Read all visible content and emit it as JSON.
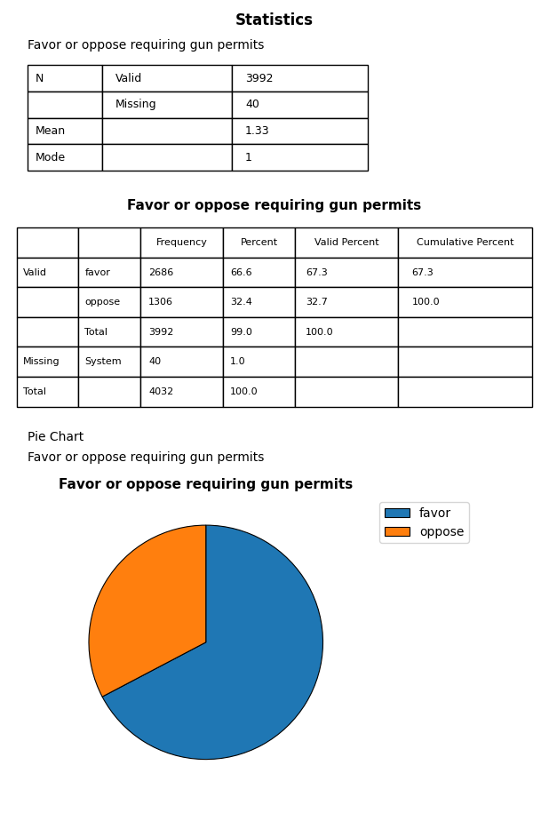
{
  "chart_data": [
    {
      "type": "table",
      "title": "Statistics",
      "subtitle": "Favor or oppose requiring gun permits",
      "rows": [
        [
          "N",
          "Valid",
          "3992"
        ],
        [
          null,
          "Missing",
          "40"
        ],
        [
          "Mean",
          null,
          "1.33"
        ],
        [
          "Mode",
          null,
          "1"
        ]
      ]
    },
    {
      "type": "table",
      "title": "Favor or oppose requiring gun permits",
      "columns": [
        null,
        null,
        "Frequency",
        "Percent",
        "Valid Percent",
        "Cumulative Percent"
      ],
      "rows": [
        [
          "Valid",
          "favor",
          "2686",
          "66.6",
          "67.3",
          "67.3"
        ],
        [
          null,
          "oppose",
          "1306",
          "32.4",
          "32.7",
          "100.0"
        ],
        [
          null,
          "Total",
          "3992",
          "99.0",
          "100.0",
          null
        ],
        [
          "Missing",
          "System",
          "40",
          "1.0",
          null,
          null
        ],
        [
          "Total",
          null,
          "4032",
          "100.0",
          null,
          null
        ]
      ]
    },
    {
      "type": "pie",
      "heading": "Pie Chart",
      "subtitle": "Favor or oppose requiring gun permits",
      "title": "Favor or oppose requiring gun permits",
      "categories": [
        "favor",
        "oppose"
      ],
      "values": [
        67.3,
        32.7
      ],
      "legend": "upper right"
    }
  ]
}
